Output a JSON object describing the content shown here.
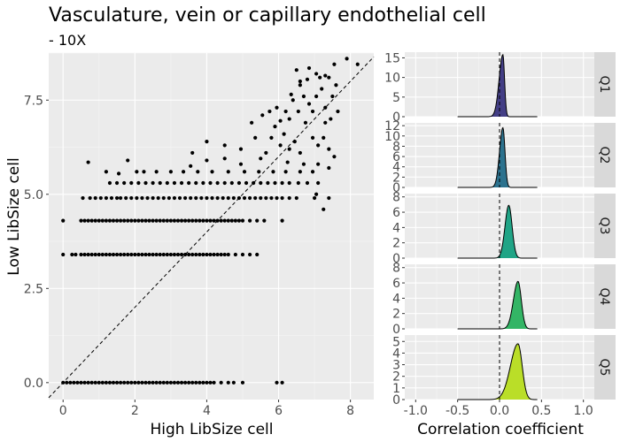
{
  "title": "Vasculature, vein or capillary endothelial cell",
  "subtitle": "- 10X",
  "chart_data": [
    {
      "type": "scatter",
      "xlabel": "High LibSize cell",
      "ylabel": "Low LibSize cell",
      "xlim": [
        -0.4,
        8.65
      ],
      "ylim": [
        -0.45,
        8.75
      ],
      "xticks": [
        0,
        2,
        4,
        6,
        8
      ],
      "yticks": [
        0.0,
        2.5,
        5.0,
        7.5
      ],
      "ytick_labels": [
        "0.0",
        "2.5",
        "5.0",
        "7.5"
      ],
      "reference_line": "y = x (dashed)",
      "grid": true,
      "points": [
        [
          0,
          0
        ],
        [
          0.1,
          0
        ],
        [
          0.2,
          0
        ],
        [
          0.3,
          0
        ],
        [
          0.4,
          0
        ],
        [
          0.5,
          0
        ],
        [
          0.6,
          0
        ],
        [
          0.7,
          0
        ],
        [
          0.8,
          0
        ],
        [
          0.9,
          0
        ],
        [
          1.0,
          0
        ],
        [
          1.1,
          0
        ],
        [
          1.2,
          0
        ],
        [
          1.3,
          0
        ],
        [
          1.4,
          0
        ],
        [
          1.5,
          0
        ],
        [
          1.6,
          0
        ],
        [
          1.7,
          0
        ],
        [
          1.8,
          0
        ],
        [
          1.9,
          0
        ],
        [
          2.0,
          0
        ],
        [
          2.1,
          0
        ],
        [
          2.2,
          0
        ],
        [
          2.3,
          0
        ],
        [
          2.4,
          0
        ],
        [
          2.5,
          0
        ],
        [
          2.6,
          0
        ],
        [
          2.7,
          0
        ],
        [
          2.8,
          0
        ],
        [
          2.9,
          0
        ],
        [
          3.0,
          0
        ],
        [
          3.1,
          0
        ],
        [
          3.2,
          0
        ],
        [
          3.3,
          0
        ],
        [
          3.4,
          0
        ],
        [
          3.5,
          0
        ],
        [
          3.6,
          0
        ],
        [
          3.7,
          0
        ],
        [
          3.8,
          0
        ],
        [
          3.9,
          0
        ],
        [
          4.0,
          0
        ],
        [
          4.1,
          0
        ],
        [
          4.2,
          0
        ],
        [
          4.4,
          0
        ],
        [
          4.6,
          0
        ],
        [
          4.75,
          0
        ],
        [
          5.0,
          0
        ],
        [
          5.95,
          0
        ],
        [
          6.1,
          0
        ],
        [
          0,
          3.4
        ],
        [
          0.25,
          3.4
        ],
        [
          0.35,
          3.4
        ],
        [
          0.5,
          3.4
        ],
        [
          0.6,
          3.4
        ],
        [
          0.7,
          3.4
        ],
        [
          0.8,
          3.4
        ],
        [
          0.9,
          3.4
        ],
        [
          1.0,
          3.4
        ],
        [
          1.1,
          3.4
        ],
        [
          1.2,
          3.4
        ],
        [
          1.3,
          3.4
        ],
        [
          1.4,
          3.4
        ],
        [
          1.5,
          3.4
        ],
        [
          1.6,
          3.4
        ],
        [
          1.7,
          3.4
        ],
        [
          1.8,
          3.4
        ],
        [
          1.9,
          3.4
        ],
        [
          2.0,
          3.4
        ],
        [
          2.1,
          3.4
        ],
        [
          2.2,
          3.4
        ],
        [
          2.3,
          3.4
        ],
        [
          2.4,
          3.4
        ],
        [
          2.5,
          3.4
        ],
        [
          2.6,
          3.4
        ],
        [
          2.7,
          3.4
        ],
        [
          2.8,
          3.4
        ],
        [
          2.9,
          3.4
        ],
        [
          3.0,
          3.4
        ],
        [
          3.1,
          3.4
        ],
        [
          3.2,
          3.4
        ],
        [
          3.3,
          3.4
        ],
        [
          3.4,
          3.4
        ],
        [
          3.5,
          3.4
        ],
        [
          3.6,
          3.4
        ],
        [
          3.7,
          3.4
        ],
        [
          3.8,
          3.4
        ],
        [
          3.9,
          3.4
        ],
        [
          4.0,
          3.4
        ],
        [
          4.1,
          3.4
        ],
        [
          4.2,
          3.4
        ],
        [
          4.3,
          3.4
        ],
        [
          4.4,
          3.4
        ],
        [
          4.5,
          3.4
        ],
        [
          4.6,
          3.4
        ],
        [
          4.8,
          3.4
        ],
        [
          5.0,
          3.4
        ],
        [
          5.2,
          3.4
        ],
        [
          5.4,
          3.4
        ],
        [
          0,
          4.3
        ],
        [
          0.5,
          4.3
        ],
        [
          0.6,
          4.3
        ],
        [
          0.7,
          4.3
        ],
        [
          0.8,
          4.3
        ],
        [
          0.9,
          4.3
        ],
        [
          1.0,
          4.3
        ],
        [
          1.1,
          4.3
        ],
        [
          1.2,
          4.3
        ],
        [
          1.3,
          4.3
        ],
        [
          1.4,
          4.3
        ],
        [
          1.5,
          4.3
        ],
        [
          1.6,
          4.3
        ],
        [
          1.7,
          4.3
        ],
        [
          1.8,
          4.3
        ],
        [
          1.9,
          4.3
        ],
        [
          2.0,
          4.3
        ],
        [
          2.1,
          4.3
        ],
        [
          2.2,
          4.3
        ],
        [
          2.3,
          4.3
        ],
        [
          2.4,
          4.3
        ],
        [
          2.5,
          4.3
        ],
        [
          2.6,
          4.3
        ],
        [
          2.7,
          4.3
        ],
        [
          2.8,
          4.3
        ],
        [
          2.9,
          4.3
        ],
        [
          3.0,
          4.3
        ],
        [
          3.1,
          4.3
        ],
        [
          3.2,
          4.3
        ],
        [
          3.3,
          4.3
        ],
        [
          3.4,
          4.3
        ],
        [
          3.5,
          4.3
        ],
        [
          3.6,
          4.3
        ],
        [
          3.7,
          4.3
        ],
        [
          3.8,
          4.3
        ],
        [
          3.9,
          4.3
        ],
        [
          4.0,
          4.3
        ],
        [
          4.1,
          4.3
        ],
        [
          4.2,
          4.3
        ],
        [
          4.3,
          4.3
        ],
        [
          4.4,
          4.3
        ],
        [
          4.5,
          4.3
        ],
        [
          4.6,
          4.3
        ],
        [
          4.7,
          4.3
        ],
        [
          4.8,
          4.3
        ],
        [
          4.9,
          4.3
        ],
        [
          5.0,
          4.3
        ],
        [
          5.2,
          4.3
        ],
        [
          5.4,
          4.3
        ],
        [
          5.6,
          4.3
        ],
        [
          6.1,
          4.3
        ],
        [
          0.55,
          4.9
        ],
        [
          0.75,
          4.9
        ],
        [
          0.9,
          4.9
        ],
        [
          1.05,
          4.9
        ],
        [
          1.2,
          4.9
        ],
        [
          1.35,
          4.9
        ],
        [
          1.5,
          4.9
        ],
        [
          1.6,
          4.9
        ],
        [
          1.75,
          4.9
        ],
        [
          1.9,
          4.9
        ],
        [
          2.05,
          4.9
        ],
        [
          2.2,
          4.9
        ],
        [
          2.35,
          4.9
        ],
        [
          2.5,
          4.9
        ],
        [
          2.65,
          4.9
        ],
        [
          2.8,
          4.9
        ],
        [
          2.95,
          4.9
        ],
        [
          3.1,
          4.9
        ],
        [
          3.25,
          4.9
        ],
        [
          3.4,
          4.9
        ],
        [
          3.55,
          4.9
        ],
        [
          3.7,
          4.9
        ],
        [
          3.85,
          4.9
        ],
        [
          4.0,
          4.9
        ],
        [
          4.15,
          4.9
        ],
        [
          4.3,
          4.9
        ],
        [
          4.45,
          4.9
        ],
        [
          4.6,
          4.9
        ],
        [
          4.75,
          4.9
        ],
        [
          4.9,
          4.9
        ],
        [
          5.05,
          4.9
        ],
        [
          5.2,
          4.9
        ],
        [
          5.35,
          4.9
        ],
        [
          5.5,
          4.9
        ],
        [
          5.65,
          4.9
        ],
        [
          5.8,
          4.9
        ],
        [
          5.95,
          4.9
        ],
        [
          6.1,
          4.9
        ],
        [
          6.3,
          4.9
        ],
        [
          6.5,
          4.9
        ],
        [
          7.0,
          4.9
        ],
        [
          7.4,
          4.9
        ],
        [
          1.3,
          5.3
        ],
        [
          1.5,
          5.3
        ],
        [
          1.7,
          5.3
        ],
        [
          1.9,
          5.3
        ],
        [
          2.1,
          5.3
        ],
        [
          2.3,
          5.3
        ],
        [
          2.5,
          5.3
        ],
        [
          2.7,
          5.3
        ],
        [
          2.9,
          5.3
        ],
        [
          3.1,
          5.3
        ],
        [
          3.3,
          5.3
        ],
        [
          3.5,
          5.3
        ],
        [
          3.7,
          5.3
        ],
        [
          3.9,
          5.3
        ],
        [
          4.1,
          5.3
        ],
        [
          4.3,
          5.3
        ],
        [
          4.5,
          5.3
        ],
        [
          4.7,
          5.3
        ],
        [
          4.9,
          5.3
        ],
        [
          5.1,
          5.3
        ],
        [
          5.3,
          5.3
        ],
        [
          5.5,
          5.3
        ],
        [
          5.7,
          5.3
        ],
        [
          5.9,
          5.3
        ],
        [
          6.1,
          5.3
        ],
        [
          6.3,
          5.3
        ],
        [
          6.55,
          5.3
        ],
        [
          6.8,
          5.3
        ],
        [
          7.1,
          5.3
        ],
        [
          2.05,
          5.6
        ],
        [
          2.25,
          5.6
        ],
        [
          2.6,
          5.6
        ],
        [
          3.0,
          5.6
        ],
        [
          3.35,
          5.6
        ],
        [
          3.75,
          5.6
        ],
        [
          4.15,
          5.6
        ],
        [
          4.6,
          5.6
        ],
        [
          5.05,
          5.6
        ],
        [
          5.45,
          5.6
        ],
        [
          5.85,
          5.6
        ],
        [
          6.2,
          5.6
        ],
        [
          6.6,
          5.6
        ],
        [
          6.95,
          5.6
        ],
        [
          0.7,
          5.85
        ],
        [
          1.2,
          5.6
        ],
        [
          1.55,
          5.55
        ],
        [
          1.8,
          5.9
        ],
        [
          3.55,
          5.75
        ],
        [
          4.0,
          5.9
        ],
        [
          4.5,
          5.95
        ],
        [
          4.95,
          5.8
        ],
        [
          5.5,
          5.95
        ],
        [
          6.25,
          5.85
        ],
        [
          6.7,
          5.8
        ],
        [
          4.0,
          6.4
        ],
        [
          4.5,
          6.3
        ],
        [
          4.95,
          6.2
        ],
        [
          5.35,
          6.5
        ],
        [
          5.65,
          6.1
        ],
        [
          5.8,
          6.5
        ],
        [
          5.9,
          6.8
        ],
        [
          6.05,
          6.3
        ],
        [
          6.15,
          6.6
        ],
        [
          6.3,
          6.2
        ],
        [
          6.45,
          6.4
        ],
        [
          6.6,
          6.1
        ],
        [
          6.75,
          6.9
        ],
        [
          6.95,
          6.5
        ],
        [
          7.1,
          6.3
        ],
        [
          7.25,
          6.5
        ],
        [
          7.4,
          6.2
        ],
        [
          3.6,
          6.1
        ],
        [
          7.55,
          6.0
        ],
        [
          5.25,
          6.9
        ],
        [
          5.55,
          7.1
        ],
        [
          5.75,
          7.2
        ],
        [
          5.95,
          7.3
        ],
        [
          6.05,
          6.95
        ],
        [
          6.2,
          7.2
        ],
        [
          6.3,
          7.0
        ],
        [
          6.4,
          7.5
        ],
        [
          6.55,
          7.2
        ],
        [
          6.7,
          7.6
        ],
        [
          6.85,
          7.4
        ],
        [
          6.95,
          7.2
        ],
        [
          7.05,
          7.6
        ],
        [
          7.2,
          7.8
        ],
        [
          7.3,
          7.3
        ],
        [
          7.5,
          7.6
        ],
        [
          7.6,
          7.9
        ],
        [
          6.35,
          7.65
        ],
        [
          6.6,
          7.9
        ],
        [
          6.8,
          8.05
        ],
        [
          6.5,
          8.3
        ],
        [
          6.85,
          8.35
        ],
        [
          7.05,
          8.2
        ],
        [
          7.15,
          8.1
        ],
        [
          7.3,
          8.15
        ],
        [
          7.55,
          8.45
        ],
        [
          7.9,
          8.6
        ],
        [
          8.2,
          8.45
        ],
        [
          6.6,
          8.0
        ],
        [
          7.4,
          8.1
        ],
        [
          7.05,
          5.0
        ],
        [
          7.25,
          4.6
        ],
        [
          7.1,
          5.8
        ],
        [
          7.4,
          5.7
        ],
        [
          7.3,
          6.9
        ],
        [
          7.65,
          7.2
        ],
        [
          7.45,
          7.0
        ]
      ]
    },
    {
      "type": "area",
      "subtype": "faceted density",
      "xlabel": "Correlation coefficient",
      "xlim": [
        -1.13,
        1.13
      ],
      "xticks": [
        -1.0,
        -0.5,
        0.0,
        0.5,
        1.0
      ],
      "xtick_labels": [
        "-1.0",
        "-0.5",
        "0.0",
        "0.5",
        "1.0"
      ],
      "vline": 0,
      "panels": [
        {
          "label": "Q1",
          "color": "#433e85",
          "ymax": 16,
          "yticks": [
            0,
            5,
            10,
            15
          ],
          "peak_x": 0.04,
          "peak_y": 15.8,
          "sigma_left": 0.045,
          "sigma_right": 0.02,
          "range": [
            -0.5,
            0.45
          ]
        },
        {
          "label": "Q2",
          "color": "#2c728e",
          "ymax": 12.2,
          "yticks": [
            0,
            2,
            4,
            6,
            8,
            10,
            12
          ],
          "peak_x": 0.04,
          "peak_y": 11.6,
          "sigma_left": 0.04,
          "sigma_right": 0.025,
          "range": [
            -0.5,
            0.45
          ]
        },
        {
          "label": "Q3",
          "color": "#20a486",
          "ymax": 8.2,
          "yticks": [
            0,
            2,
            4,
            6,
            8
          ],
          "peak_x": 0.11,
          "peak_y": 6.9,
          "sigma_left": 0.045,
          "sigma_right": 0.04,
          "range": [
            -0.5,
            0.45
          ]
        },
        {
          "label": "Q4",
          "color": "#33b565",
          "ymax": 8.2,
          "yticks": [
            0,
            2,
            4,
            6,
            8
          ],
          "peak_x": 0.22,
          "peak_y": 6.2,
          "sigma_left": 0.055,
          "sigma_right": 0.04,
          "range": [
            -0.5,
            0.45
          ]
        },
        {
          "label": "Q5",
          "color": "#bade28",
          "ymax": 5.4,
          "yticks": [
            0,
            1,
            2,
            3,
            4,
            5
          ],
          "peak_x": 0.22,
          "peak_y": 4.8,
          "sigma_left": 0.09,
          "sigma_right": 0.05,
          "range": [
            -0.5,
            0.45
          ]
        }
      ]
    }
  ]
}
